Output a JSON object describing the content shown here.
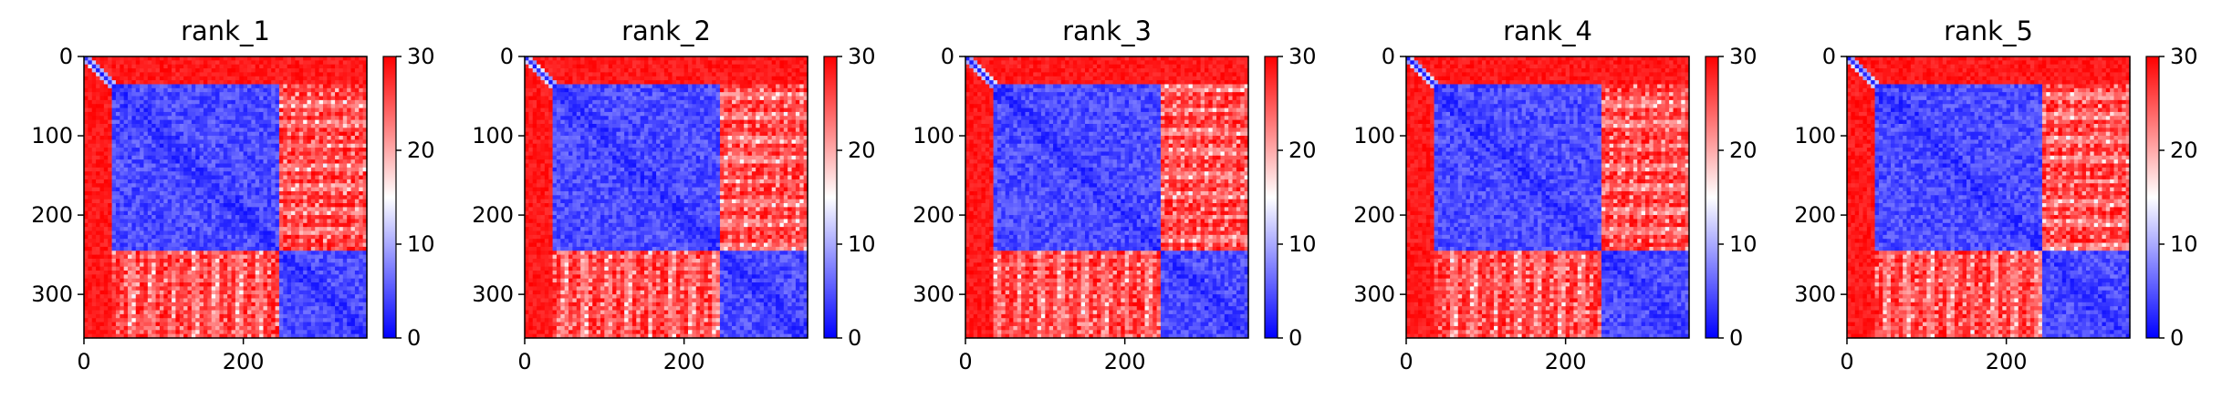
{
  "chart_data": {
    "type": "heatmap",
    "colormap": "bwr",
    "color_low": "#0000ff",
    "color_mid": "#ffffff",
    "color_high": "#ff0000",
    "panels": [
      {
        "title": "rank_1"
      },
      {
        "title": "rank_2"
      },
      {
        "title": "rank_3"
      },
      {
        "title": "rank_4"
      },
      {
        "title": "rank_5"
      }
    ],
    "matrix_size": 355,
    "domain_boundary": 245,
    "x_ticks": [
      "0",
      "200"
    ],
    "x_tick_values": [
      0,
      200
    ],
    "y_ticks": [
      "0",
      "100",
      "200",
      "300"
    ],
    "y_tick_values": [
      0,
      100,
      200,
      300
    ],
    "xlim": [
      0,
      355
    ],
    "ylim": [
      355,
      0
    ],
    "colorbar": {
      "range": [
        0,
        30
      ],
      "ticks": [
        "0",
        "10",
        "20",
        "30"
      ],
      "tick_values": [
        0,
        10,
        20,
        30
      ]
    }
  }
}
